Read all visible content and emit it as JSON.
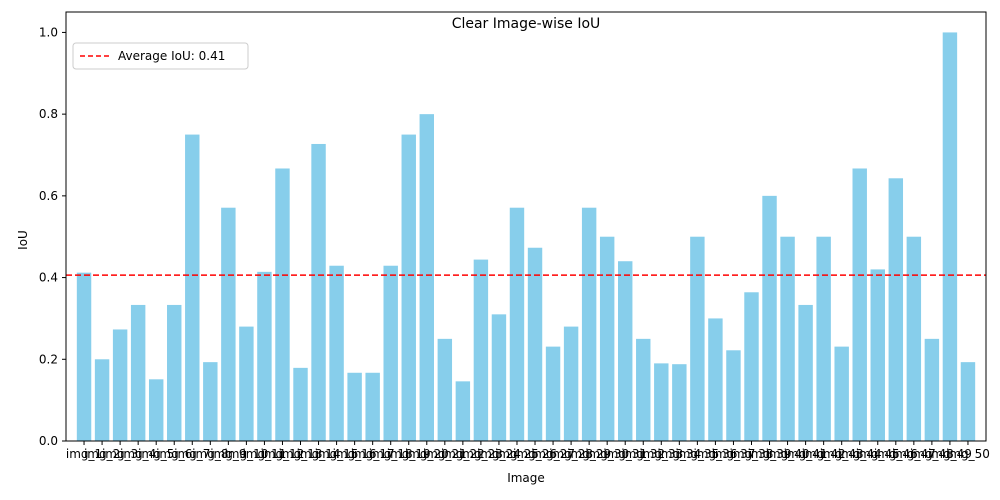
{
  "chart_data": {
    "type": "bar",
    "title": "Clear Image-wise IoU",
    "xlabel": "Image",
    "ylabel": "IoU",
    "ylim": [
      0,
      1.05
    ],
    "yticks": [
      0.0,
      0.2,
      0.4,
      0.6,
      0.8,
      1.0
    ],
    "ytick_labels": [
      "0.0",
      "0.2",
      "0.4",
      "0.6",
      "0.8",
      "1.0"
    ],
    "grid": false,
    "legend_position": "top-left",
    "bar_color": "#87ceeb",
    "average_line": {
      "value": 0.406,
      "label": "Average IoU: 0.41",
      "color": "#ff0000",
      "style": "dashed"
    },
    "categories": [
      "img_1",
      "img_2",
      "img_3",
      "img_4",
      "img_5",
      "img_6",
      "img_7",
      "img_8",
      "img_9",
      "img_10",
      "img_11",
      "img_12",
      "img_13",
      "img_14",
      "img_15",
      "img_16",
      "img_17",
      "img_18",
      "img_19",
      "img_20",
      "img_21",
      "img_22",
      "img_23",
      "img_24",
      "img_25",
      "img_26",
      "img_27",
      "img_28",
      "img_29",
      "img_30",
      "img_31",
      "img_32",
      "img_33",
      "img_34",
      "img_35",
      "img_36",
      "img_37",
      "img_38",
      "img_39",
      "img_40",
      "img_41",
      "img_42",
      "img_43",
      "img_44",
      "img_45",
      "img_46",
      "img_47",
      "img_48",
      "img_49",
      "img_50"
    ],
    "values": [
      0.412,
      0.2,
      0.273,
      0.333,
      0.151,
      0.333,
      0.75,
      0.193,
      0.571,
      0.28,
      0.414,
      0.667,
      0.179,
      0.727,
      0.429,
      0.167,
      0.167,
      0.429,
      0.75,
      0.8,
      0.25,
      0.146,
      0.444,
      0.31,
      0.571,
      0.473,
      0.231,
      0.28,
      0.571,
      0.5,
      0.44,
      0.25,
      0.19,
      0.188,
      0.5,
      0.3,
      0.222,
      0.364,
      0.6,
      0.5,
      0.333,
      0.5,
      0.231,
      0.667,
      0.42,
      0.643,
      0.5,
      0.25,
      1.0,
      0.193
    ]
  }
}
